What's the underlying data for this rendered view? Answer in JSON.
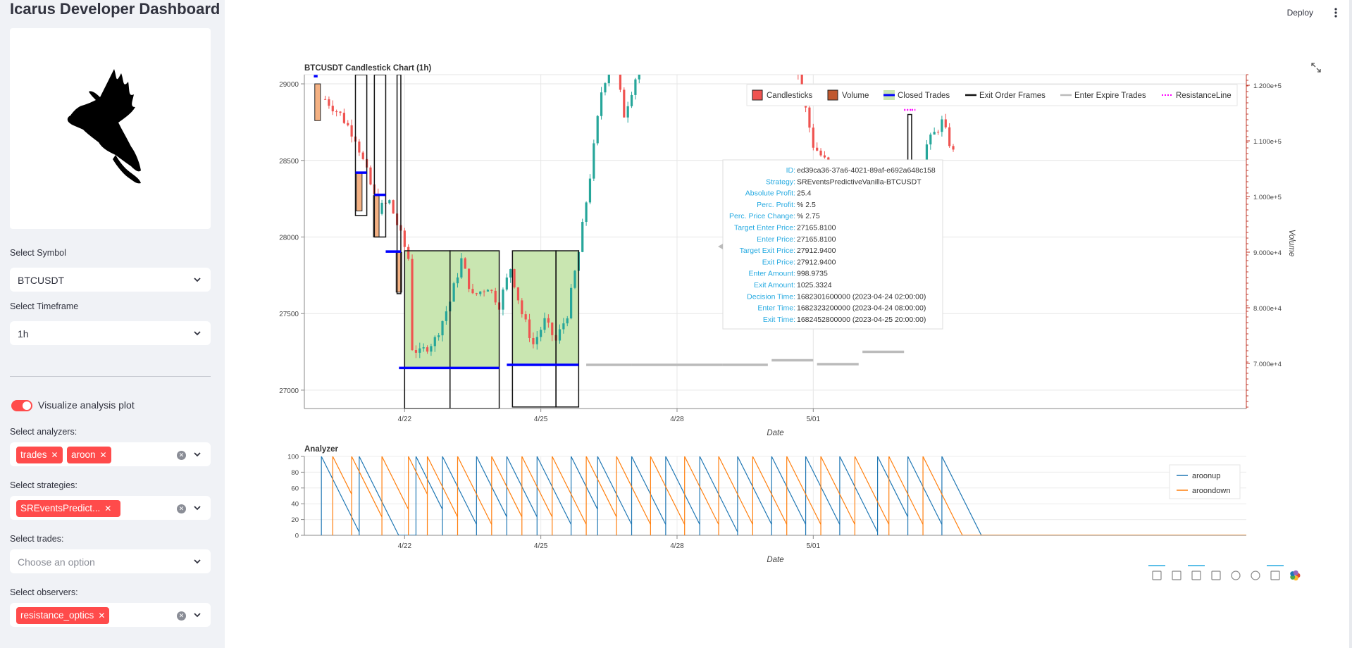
{
  "app": {
    "title": "Icarus Developer Dashboard",
    "deploy_label": "Deploy"
  },
  "sidebar": {
    "symbol": {
      "label": "Select Symbol",
      "value": "BTCUSDT"
    },
    "timeframe": {
      "label": "Select Timeframe",
      "value": "1h"
    },
    "visualize": {
      "label": "Visualize analysis plot",
      "on": true
    },
    "analyzers": {
      "label": "Select analyzers:",
      "chips": [
        "trades",
        "aroon"
      ]
    },
    "strategies": {
      "label": "Select strategies:",
      "chips": [
        "SREventsPredict..."
      ]
    },
    "trades": {
      "label": "Select trades:",
      "placeholder": "Choose an option"
    },
    "observers": {
      "label": "Select observers:",
      "chips": [
        "resistance_optics"
      ]
    }
  },
  "colors": {
    "accent": "#ff4b4b",
    "candle_up": "#26a69a",
    "candle_down": "#ef5350",
    "closed_trade_fill": "#c9e6b1",
    "trade_line": "#0000ff",
    "expire": "#bbbbbb",
    "resistance": "#ff00ff",
    "aroonup": "#1f77b4",
    "aroondown": "#ff7f0e",
    "tooltip_key": "#26aae1"
  },
  "chart_data": [
    {
      "type": "candlestick",
      "title": "BTCUSDT Candlestick Chart (1h)",
      "xlabel": "Date",
      "ylabel": "",
      "y2label": "Volume",
      "x_ticks": [
        "4/22",
        "4/25",
        "4/28",
        "5/01"
      ],
      "y_ticks": [
        27000,
        27500,
        28000,
        28500,
        29000
      ],
      "y2_ticks": [
        "7.000e+4",
        "8.000e+4",
        "9.000e+4",
        "1.000e+5",
        "1.100e+5",
        "1.200e+5"
      ],
      "ylim": [
        26880,
        29060
      ],
      "legend": [
        "Candlesticks",
        "Volume",
        "Closed Trades",
        "Exit Order Frames",
        "Enter Expire Trades",
        "ResistanceLine"
      ],
      "legend_position": "top-right",
      "close_path": [
        [
          "4/20 06:00",
          28900
        ],
        [
          "4/20 14:00",
          28800
        ],
        [
          "4/20 22:00",
          28650
        ],
        [
          "4/21 04:00",
          28420
        ],
        [
          "4/21 10:00",
          28180
        ],
        [
          "4/21 16:00",
          28230
        ],
        [
          "4/21 22:00",
          28010
        ],
        [
          "4/22 02:00",
          27860
        ],
        [
          "4/22 03:00",
          27290
        ],
        [
          "4/22 08:00",
          27240
        ],
        [
          "4/22 16:00",
          27330
        ],
        [
          "4/23 00:00",
          27580
        ],
        [
          "4/23 06:00",
          27850
        ],
        [
          "4/23 12:00",
          27610
        ],
        [
          "4/23 20:00",
          27680
        ],
        [
          "4/24 02:00",
          27560
        ],
        [
          "4/24 08:00",
          27800
        ],
        [
          "4/24 14:00",
          27500
        ],
        [
          "4/24 20:00",
          27300
        ],
        [
          "4/25 02:00",
          27450
        ],
        [
          "4/25 08:00",
          27320
        ],
        [
          "4/25 14:00",
          27500
        ],
        [
          "4/25 20:00",
          27900
        ],
        [
          "4/26 02:00",
          28400
        ],
        [
          "4/26 08:00",
          28950
        ],
        [
          "4/26 14:00",
          29200
        ],
        [
          "4/26 20:00",
          28800
        ],
        [
          "4/27 06:00",
          29200
        ],
        [
          "4/28 12:00",
          29300
        ],
        [
          "4/30 12:00",
          29300
        ],
        [
          "5/01 00:00",
          28600
        ],
        [
          "5/01 12:00",
          28400
        ],
        [
          "5/01 20:00",
          28100
        ],
        [
          "5/02 04:00",
          27800
        ],
        [
          "5/02 10:00",
          28000
        ],
        [
          "5/02 20:00",
          27900
        ],
        [
          "5/03 04:00",
          28100
        ],
        [
          "5/03 12:00",
          28600
        ],
        [
          "5/03 20:00",
          28750
        ],
        [
          "5/04 02:00",
          28550
        ]
      ],
      "closed_trades": [
        {
          "start": "4/22 00:00",
          "end": "4/24 02:00",
          "enter_price": 27145,
          "top": 27910
        },
        {
          "start": "4/24 09:00",
          "end": "4/25 20:00",
          "enter_price": 27165,
          "top": 27910
        }
      ],
      "exit_order_frames": [
        {
          "start": "4/20 22:00",
          "end": "4/21 04:00",
          "low": 28140,
          "high": 29060
        },
        {
          "start": "4/21 08:00",
          "end": "4/21 14:00",
          "low": 28000,
          "high": 29060
        },
        {
          "start": "4/21 20:00",
          "end": "4/21 22:00",
          "low": 27630,
          "high": 29060
        },
        {
          "start": "4/22 00:00",
          "end": "4/23 00:00",
          "low": 26880,
          "high": 27910
        },
        {
          "start": "4/23 00:00",
          "end": "4/24 02:00",
          "low": 26880,
          "high": 27910
        },
        {
          "start": "4/24 09:00",
          "end": "4/25 08:00",
          "low": 26890,
          "high": 27910
        },
        {
          "start": "4/25 08:00",
          "end": "4/25 20:00",
          "low": 26890,
          "high": 27910
        },
        {
          "start": "5/03 02:00",
          "end": "5/03 04:00",
          "low": 27930,
          "high": 28800
        }
      ],
      "entry_lines": [
        {
          "start": "4/20 00:00",
          "end": "4/20 02:00",
          "price": 29050
        },
        {
          "start": "4/20 22:00",
          "end": "4/21 04:00",
          "price": 28420
        },
        {
          "start": "4/21 08:00",
          "end": "4/21 14:00",
          "price": 28275
        },
        {
          "start": "4/21 14:00",
          "end": "4/21 22:00",
          "price": 27905
        }
      ],
      "expire_trades": [
        {
          "start": "4/26 00:00",
          "end": "4/27 00:00",
          "price": 27165
        },
        {
          "start": "4/27 00:00",
          "end": "4/28 00:00",
          "price": 27165
        },
        {
          "start": "4/28 00:00",
          "end": "4/29 00:00",
          "price": 27165
        },
        {
          "start": "4/29 00:00",
          "end": "4/30 00:00",
          "price": 27165
        },
        {
          "start": "4/30 02:00",
          "end": "5/01 00:00",
          "price": 27195
        },
        {
          "start": "5/01 02:00",
          "end": "5/02 00:00",
          "price": 27170
        },
        {
          "start": "5/02 02:00",
          "end": "5/03 00:00",
          "price": 27250
        }
      ],
      "resistance_lines": [
        {
          "start": "5/01 18:00",
          "end": "5/02 02:00",
          "price": 27620
        },
        {
          "start": "5/02 22:00",
          "end": "5/03 04:00",
          "price": 28320
        },
        {
          "start": "5/03 00:00",
          "end": "5/03 04:00",
          "price": 28830
        },
        {
          "start": "5/03 04:00",
          "end": "5/03 06:00",
          "price": 28830
        }
      ],
      "tooltip": [
        [
          "ID:",
          "ed39ca36-37a6-4021-89af-e692a648c158"
        ],
        [
          "Strategy:",
          "SREventsPredictiveVanilla-BTCUSDT"
        ],
        [
          "Absolute Profit:",
          "25.4"
        ],
        [
          "Perc. Profit:",
          "% 2.5"
        ],
        [
          "Perc. Price Change:",
          "% 2.75"
        ],
        [
          "Target Enter Price:",
          "27165.8100"
        ],
        [
          "Enter Price:",
          "27165.8100"
        ],
        [
          "Target Exit Price:",
          "27912.9400"
        ],
        [
          "Exit Price:",
          "27912.9400"
        ],
        [
          "Enter Amount:",
          "998.9735"
        ],
        [
          "Exit Amount:",
          "1025.3324"
        ],
        [
          "Decision Time:",
          "1682301600000 (2023-04-24 02:00:00)"
        ],
        [
          "Enter Time:",
          "1682323200000 (2023-04-24 08:00:00)"
        ],
        [
          "Exit Time:",
          "1682452800000 (2023-04-25 20:00:00)"
        ]
      ]
    },
    {
      "type": "line",
      "title": "Analyzer",
      "xlabel": "Date",
      "ylabel": "",
      "x_ticks": [
        "4/22",
        "4/25",
        "4/28",
        "5/01"
      ],
      "y_ticks": [
        0,
        20,
        40,
        60,
        80,
        100
      ],
      "ylim": [
        0,
        100
      ],
      "legend_position": "top-right",
      "series": [
        {
          "name": "aroonup",
          "sawtooth_resets": [
            "4/20 04:00",
            "4/21 00:00",
            "4/22 06:00",
            "4/22 20:00",
            "4/23 14:00",
            "4/24 06:00",
            "4/24 22:00",
            "4/25 16:00",
            "4/26 06:00",
            "4/27 00:00",
            "4/27 18:00",
            "4/28 12:00",
            "4/29 08:00",
            "4/30 02:00",
            "4/30 20:00",
            "5/01 14:00",
            "5/02 10:00",
            "5/03 02:00",
            "5/03 20:00"
          ]
        },
        {
          "name": "aroondown",
          "sawtooth_resets": [
            "4/20 10:00",
            "4/20 20:00",
            "4/21 12:00",
            "4/22 02:00",
            "4/22 12:00",
            "4/23 04:00",
            "4/23 22:00",
            "4/24 14:00",
            "4/25 06:00",
            "4/26 00:00",
            "4/26 16:00",
            "4/27 10:00",
            "4/28 04:00",
            "4/28 22:00",
            "4/29 16:00",
            "4/30 10:00",
            "5/01 04:00",
            "5/01 22:00",
            "5/02 16:00",
            "5/03 10:00"
          ]
        }
      ]
    }
  ]
}
